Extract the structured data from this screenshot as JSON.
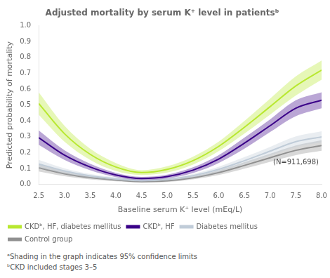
{
  "chart_data": {
    "type": "line",
    "title": "Adjusted mortality by serum K⁺ level in patientsᵇ",
    "xlabel": "Baseline serum K⁺ level (mEq/L)",
    "ylabel": "Predicted probability of mortality",
    "annotations": [
      "(N=911,698)"
    ],
    "footnotes": [
      "ᵃShading in the graph indicates 95% confidence limits",
      "ᵇCKD included stages 3–5"
    ],
    "x": [
      2.5,
      3.0,
      3.5,
      4.0,
      4.5,
      5.0,
      5.5,
      6.0,
      6.5,
      7.0,
      7.5,
      8.0
    ],
    "xlim": [
      2.5,
      8.0
    ],
    "ylim": [
      0.0,
      1.0
    ],
    "xticks": [
      2.5,
      {
        "value": 3.0,
        "label": "3.0"
      },
      3.5,
      {
        "value": 4.0,
        "label": "4.0"
      },
      4.5,
      {
        "value": 5.0,
        "label": "5.0"
      },
      5.5,
      {
        "value": 6.0,
        "label": "6.0"
      },
      6.5,
      {
        "value": 7.0,
        "label": "7.0"
      },
      7.5,
      {
        "value": 8.0,
        "label": "8.0"
      }
    ],
    "yticks": [
      {
        "value": 0.0,
        "label": "0.0"
      },
      0.1,
      0.2,
      0.3,
      0.4,
      0.5,
      0.6,
      0.7,
      0.8,
      0.9,
      {
        "value": 1.0,
        "label": "1.0"
      }
    ],
    "grid": false,
    "legend": "bottom",
    "series": [
      {
        "name": "CKDᵇ, HF, diabetes mellitus",
        "color": "#b8e830",
        "values": [
          0.51,
          0.32,
          0.19,
          0.11,
          0.075,
          0.095,
          0.15,
          0.24,
          0.36,
          0.49,
          0.62,
          0.72
        ],
        "low": [
          0.44,
          0.27,
          0.155,
          0.085,
          0.06,
          0.075,
          0.125,
          0.21,
          0.32,
          0.44,
          0.56,
          0.66
        ],
        "high": [
          0.58,
          0.37,
          0.225,
          0.135,
          0.09,
          0.115,
          0.175,
          0.27,
          0.4,
          0.54,
          0.68,
          0.78
        ]
      },
      {
        "name": "CKDᵇ, HF",
        "color": "#3a0088",
        "values": [
          0.295,
          0.185,
          0.11,
          0.06,
          0.038,
          0.05,
          0.09,
          0.16,
          0.26,
          0.37,
          0.48,
          0.53
        ],
        "low": [
          0.25,
          0.155,
          0.09,
          0.047,
          0.028,
          0.038,
          0.072,
          0.135,
          0.225,
          0.33,
          0.43,
          0.48
        ],
        "high": [
          0.34,
          0.215,
          0.13,
          0.073,
          0.048,
          0.062,
          0.108,
          0.185,
          0.295,
          0.41,
          0.53,
          0.58
        ]
      },
      {
        "name": "Diabetes mellitus",
        "color": "#c0ccd8",
        "values": [
          0.13,
          0.085,
          0.054,
          0.036,
          0.025,
          0.032,
          0.055,
          0.095,
          0.15,
          0.21,
          0.27,
          0.3
        ],
        "low": [
          0.105,
          0.068,
          0.042,
          0.027,
          0.018,
          0.024,
          0.043,
          0.078,
          0.128,
          0.183,
          0.237,
          0.265
        ],
        "high": [
          0.155,
          0.102,
          0.066,
          0.045,
          0.032,
          0.04,
          0.067,
          0.112,
          0.172,
          0.237,
          0.303,
          0.335
        ]
      },
      {
        "name": "Control group",
        "color": "#909090",
        "values": [
          0.105,
          0.068,
          0.043,
          0.028,
          0.018,
          0.023,
          0.042,
          0.075,
          0.12,
          0.168,
          0.215,
          0.245
        ],
        "low": [
          0.082,
          0.052,
          0.032,
          0.02,
          0.012,
          0.016,
          0.032,
          0.06,
          0.1,
          0.143,
          0.185,
          0.212
        ],
        "high": [
          0.128,
          0.084,
          0.054,
          0.036,
          0.024,
          0.03,
          0.052,
          0.09,
          0.14,
          0.193,
          0.245,
          0.278
        ]
      }
    ]
  }
}
